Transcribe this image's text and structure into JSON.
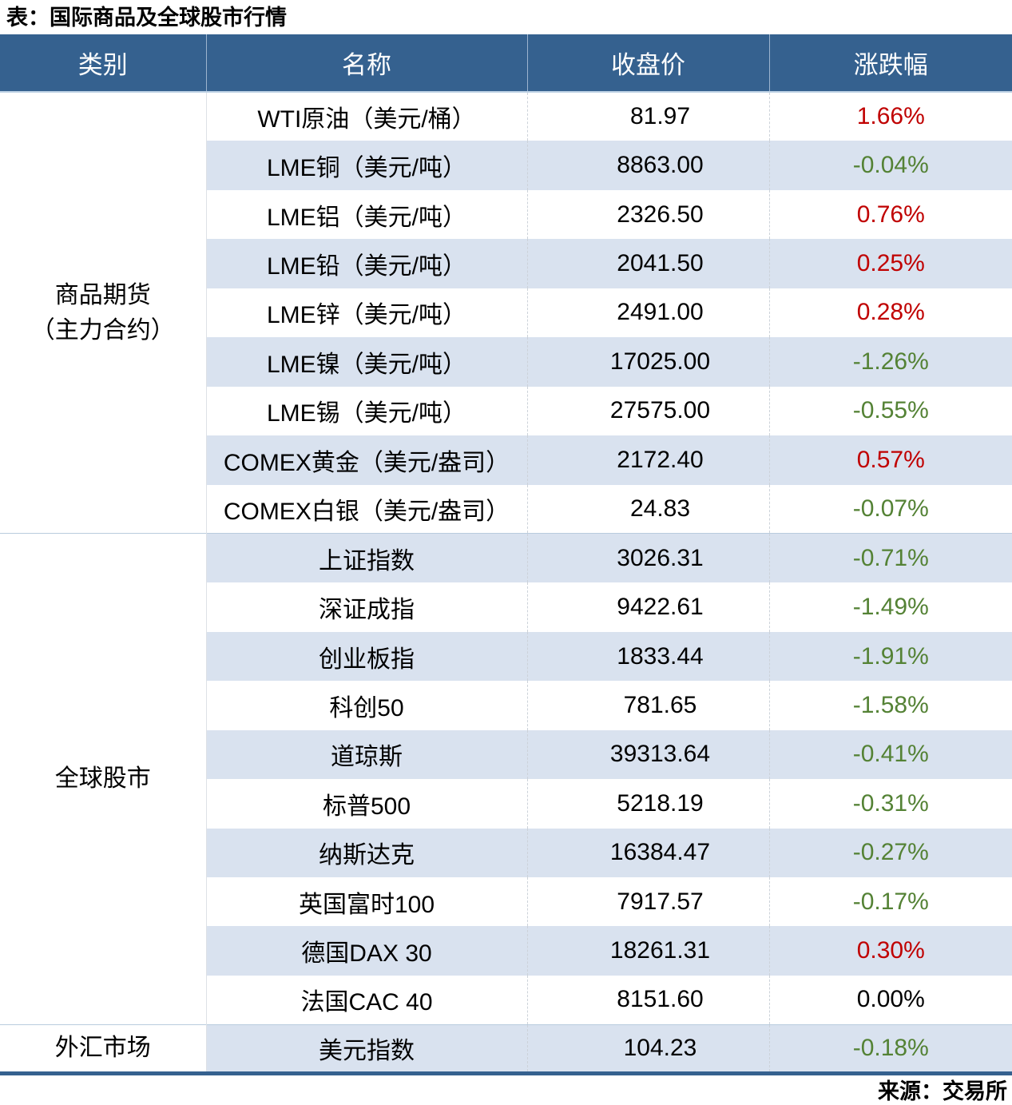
{
  "chart_data": {
    "type": "table",
    "title": "表：国际商品及全球股市行情",
    "source": "来源：交易所",
    "columns": [
      "类别",
      "名称",
      "收盘价",
      "涨跌幅"
    ],
    "colors": {
      "header_bg": "#35618F",
      "header_text": "#FFFFFF",
      "row_band": "#D9E2EF",
      "up": "#C00000",
      "down": "#548235",
      "flat": "#000000",
      "bottom_border": "#35618F",
      "section_line": "#B9CCDE"
    },
    "sections": [
      {
        "category_lines": [
          "商品期货",
          "（主力合约）"
        ],
        "rows": [
          {
            "name": "WTI原油（美元/桶）",
            "close": "81.97",
            "change": "1.66%"
          },
          {
            "name": "LME铜（美元/吨）",
            "close": "8863.00",
            "change": "-0.04%"
          },
          {
            "name": "LME铝（美元/吨）",
            "close": "2326.50",
            "change": "0.76%"
          },
          {
            "name": "LME铅（美元/吨）",
            "close": "2041.50",
            "change": "0.25%"
          },
          {
            "name": "LME锌（美元/吨）",
            "close": "2491.00",
            "change": "0.28%"
          },
          {
            "name": "LME镍（美元/吨）",
            "close": "17025.00",
            "change": "-1.26%"
          },
          {
            "name": "LME锡（美元/吨）",
            "close": "27575.00",
            "change": "-0.55%"
          },
          {
            "name": "COMEX黄金（美元/盎司）",
            "close": "2172.40",
            "change": "0.57%"
          },
          {
            "name": "COMEX白银（美元/盎司）",
            "close": "24.83",
            "change": "-0.07%"
          }
        ]
      },
      {
        "category_lines": [
          "全球股市"
        ],
        "rows": [
          {
            "name": "上证指数",
            "close": "3026.31",
            "change": "-0.71%"
          },
          {
            "name": "深证成指",
            "close": "9422.61",
            "change": "-1.49%"
          },
          {
            "name": "创业板指",
            "close": "1833.44",
            "change": "-1.91%"
          },
          {
            "name": "科创50",
            "close": "781.65",
            "change": "-1.58%"
          },
          {
            "name": "道琼斯",
            "close": "39313.64",
            "change": "-0.41%"
          },
          {
            "name": "标普500",
            "close": "5218.19",
            "change": "-0.31%"
          },
          {
            "name": "纳斯达克",
            "close": "16384.47",
            "change": "-0.27%"
          },
          {
            "name": "英国富时100",
            "close": "7917.57",
            "change": "-0.17%"
          },
          {
            "name": "德国DAX 30",
            "close": "18261.31",
            "change": "0.30%"
          },
          {
            "name": "法国CAC 40",
            "close": "8151.60",
            "change": "0.00%"
          }
        ]
      },
      {
        "category_lines": [
          "外汇市场"
        ],
        "rows": [
          {
            "name": "美元指数",
            "close": "104.23",
            "change": "-0.18%"
          }
        ]
      }
    ]
  }
}
